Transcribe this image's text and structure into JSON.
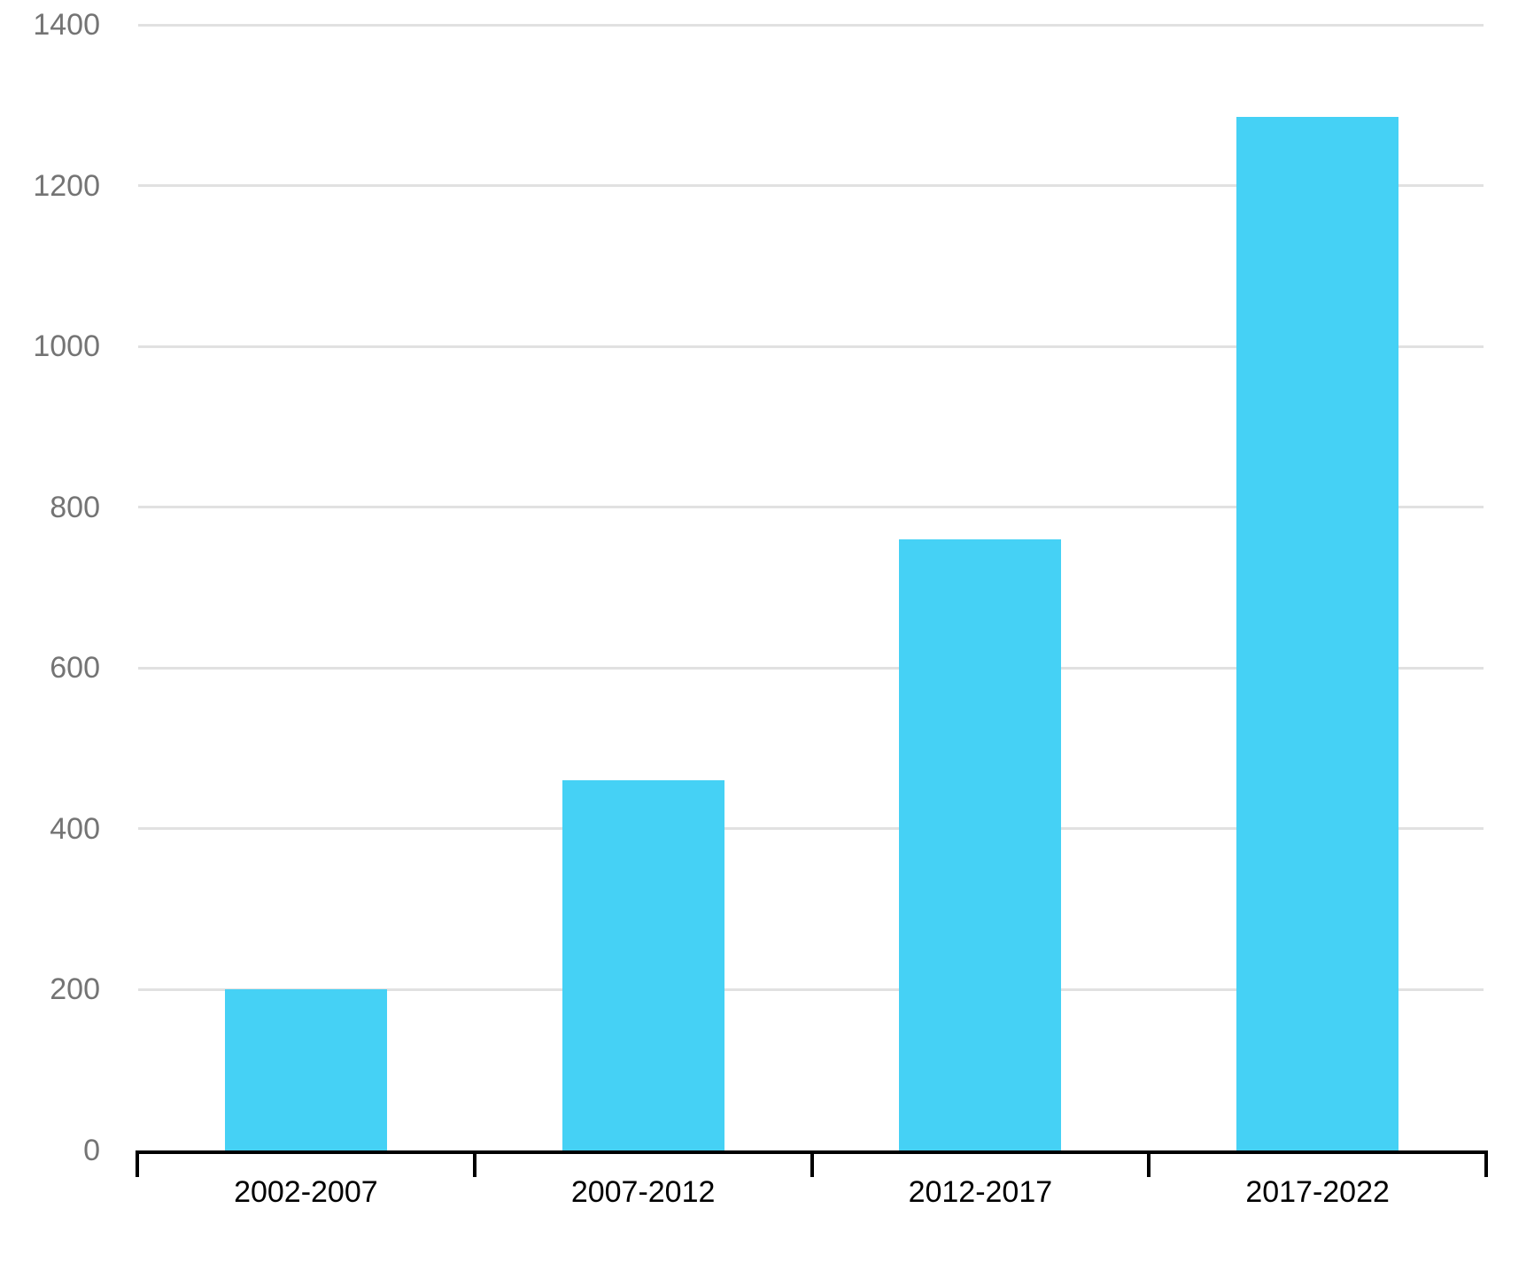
{
  "chart_data": {
    "type": "bar",
    "title": "",
    "xlabel": "",
    "ylabel": "",
    "categories": [
      "2002-2007",
      "2007-2012",
      "2012-2017",
      "2017-2022"
    ],
    "values": [
      200,
      460,
      760,
      1285
    ],
    "ylim": [
      0,
      1400
    ],
    "yticks": [
      0,
      200,
      400,
      600,
      800,
      1000,
      1200,
      1400
    ],
    "grid": "horizontal",
    "legend_position": "none",
    "colors": {
      "bar_fill": "#45d1f5",
      "gridline": "#e1e1e1",
      "y_tick_label": "#747474",
      "x_tick_label": "#000000",
      "axis_line": "#000000",
      "background": "#ffffff"
    }
  }
}
